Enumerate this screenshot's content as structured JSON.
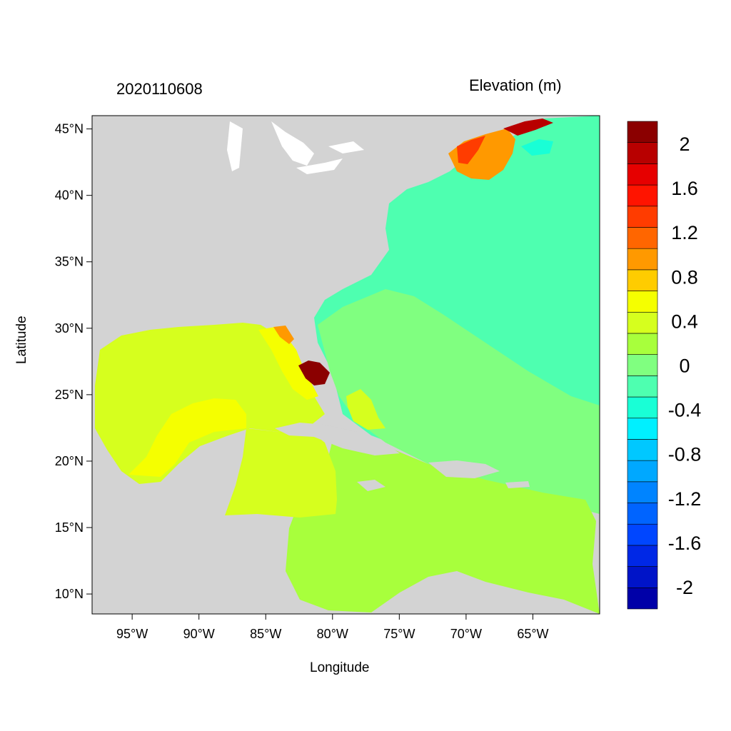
{
  "titles": {
    "left": "2020110608",
    "right": "Elevation (m)"
  },
  "axes": {
    "xlabel": "Longitude",
    "ylabel": "Latitude",
    "lon_range": [
      -98,
      -60
    ],
    "lat_range": [
      8.5,
      46
    ],
    "x_ticks": [
      {
        "value": -95,
        "label": "95°W"
      },
      {
        "value": -90,
        "label": "90°W"
      },
      {
        "value": -85,
        "label": "85°W"
      },
      {
        "value": -80,
        "label": "80°W"
      },
      {
        "value": -75,
        "label": "75°W"
      },
      {
        "value": -70,
        "label": "70°W"
      },
      {
        "value": -65,
        "label": "65°W"
      }
    ],
    "y_ticks": [
      {
        "value": 45,
        "label": "45°N"
      },
      {
        "value": 40,
        "label": "40°N"
      },
      {
        "value": 35,
        "label": "35°N"
      },
      {
        "value": 30,
        "label": "30°N"
      },
      {
        "value": 25,
        "label": "25°N"
      },
      {
        "value": 20,
        "label": "20°N"
      },
      {
        "value": 15,
        "label": "15°N"
      },
      {
        "value": 10,
        "label": "10°N"
      }
    ]
  },
  "colorbar": {
    "colors": [
      "#0000a8",
      "#0014c8",
      "#0028e6",
      "#0046ff",
      "#0064ff",
      "#0084ff",
      "#00a8ff",
      "#00c8ff",
      "#00f0ff",
      "#19ffd6",
      "#4effb0",
      "#80ff80",
      "#a8ff3c",
      "#d6ff1e",
      "#f5ff00",
      "#ffcc00",
      "#ff9900",
      "#ff6600",
      "#ff3c00",
      "#ff1400",
      "#e60000",
      "#b80000",
      "#8b0000"
    ],
    "labels": [
      "2",
      "1.6",
      "1.2",
      "0.8",
      "0.4",
      "0",
      "-0.4",
      "-0.8",
      "-1.2",
      "-1.6",
      "-2"
    ],
    "label_values": [
      2,
      1.6,
      1.2,
      0.8,
      0.4,
      0,
      -0.4,
      -0.8,
      -1.2,
      -1.6,
      -2
    ]
  },
  "colors": {
    "land": "#d3d3d3",
    "atlantic": "#4effb0",
    "near_zero": "#80ff80",
    "caribbean": "#a8ff3c",
    "gulf": "#d6ff1e",
    "gulf_core": "#f5ff00",
    "surge_high": "#ff9900",
    "surge_peak": "#8b0000"
  }
}
